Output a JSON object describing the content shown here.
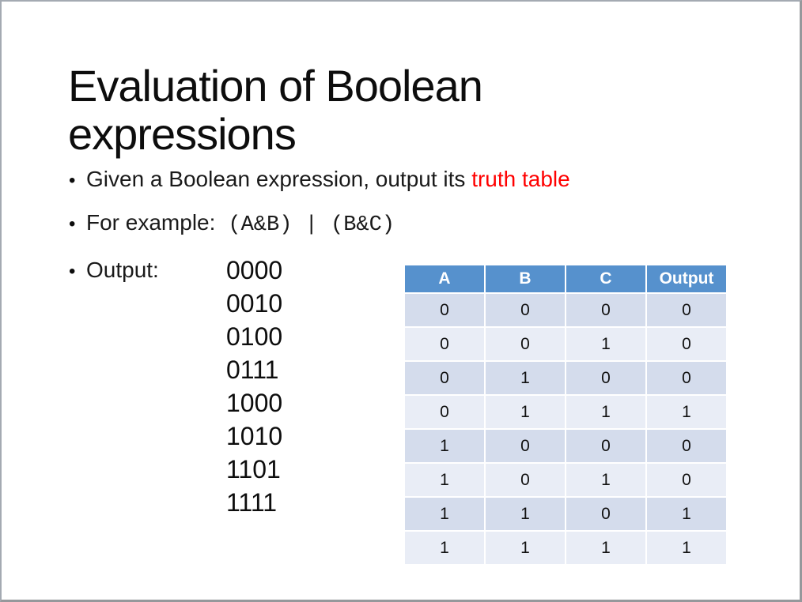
{
  "slide": {
    "title": "Evaluation of Boolean expressions",
    "bullet_marker": "•",
    "bullets": {
      "given": {
        "text_black": "Given a Boolean expression, output its ",
        "text_red": "truth table"
      },
      "example": {
        "label": "For example:",
        "expression": "(A&B) | (B&C)"
      },
      "output": {
        "label": "Output:",
        "values": [
          "0000",
          "0010",
          "0100",
          "0111",
          "1000",
          "1010",
          "1101",
          "1111"
        ]
      }
    },
    "truth_table": {
      "headers": [
        "A",
        "B",
        "C",
        "Output"
      ],
      "rows": [
        [
          "0",
          "0",
          "0",
          "0"
        ],
        [
          "0",
          "0",
          "1",
          "0"
        ],
        [
          "0",
          "1",
          "0",
          "0"
        ],
        [
          "0",
          "1",
          "1",
          "1"
        ],
        [
          "1",
          "0",
          "0",
          "0"
        ],
        [
          "1",
          "0",
          "1",
          "0"
        ],
        [
          "1",
          "1",
          "0",
          "1"
        ],
        [
          "1",
          "1",
          "1",
          "1"
        ]
      ]
    },
    "colors": {
      "header_blue": "#5691CD",
      "row_band_dark": "#D4DCEC",
      "row_band_light": "#E9EDF6",
      "highlight_red": "#FF0000",
      "slide_border": "#A4AAB2"
    }
  }
}
